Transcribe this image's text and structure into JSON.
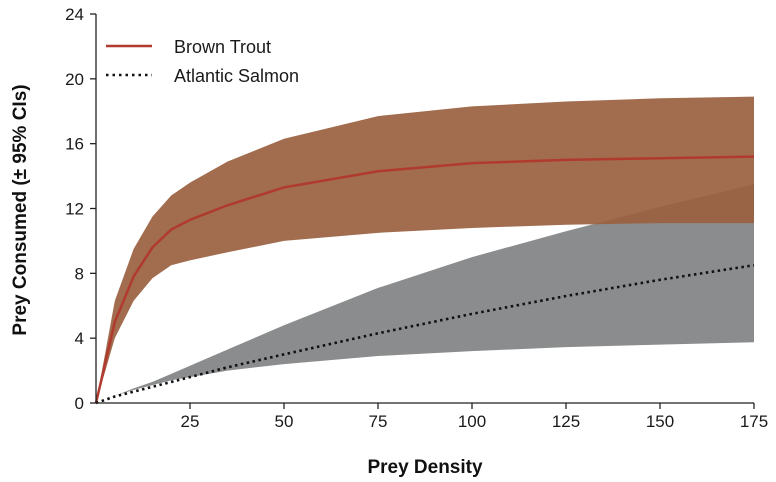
{
  "chart_data": {
    "type": "line",
    "title": "",
    "xlabel": "Prey Density",
    "ylabel": "Prey Consumed (± 95% CIs)",
    "xlim": [
      0,
      175
    ],
    "ylim": [
      0,
      24
    ],
    "x_ticks": [
      25,
      50,
      75,
      100,
      125,
      150,
      175
    ],
    "y_ticks": [
      0,
      4,
      8,
      12,
      16,
      20,
      24
    ],
    "grid": false,
    "legend_position": "top-left",
    "x": [
      0,
      5,
      10,
      15,
      20,
      25,
      35,
      50,
      75,
      100,
      125,
      150,
      175
    ],
    "series": [
      {
        "name": "Brown Trout",
        "line_style": "solid",
        "color": "#b03a2e",
        "band_color": "#9a6040",
        "values": [
          0,
          5.0,
          7.8,
          9.6,
          10.7,
          11.3,
          12.2,
          13.3,
          14.3,
          14.8,
          15.0,
          15.1,
          15.2
        ],
        "lower": [
          0,
          4.0,
          6.3,
          7.7,
          8.5,
          8.8,
          9.3,
          10.0,
          10.5,
          10.8,
          11.0,
          11.1,
          11.1
        ],
        "upper": [
          0,
          6.3,
          9.5,
          11.5,
          12.8,
          13.6,
          14.9,
          16.3,
          17.7,
          18.3,
          18.6,
          18.8,
          18.9
        ]
      },
      {
        "name": "Atlantic Salmon",
        "line_style": "dotted",
        "color": "#111111",
        "band_color": "#8a8c8d",
        "values": [
          0,
          0.4,
          0.7,
          1.0,
          1.3,
          1.6,
          2.2,
          3.0,
          4.3,
          5.5,
          6.6,
          7.6,
          8.5
        ],
        "lower": [
          0,
          0.45,
          0.8,
          1.1,
          1.4,
          1.6,
          2.0,
          2.4,
          2.9,
          3.2,
          3.45,
          3.6,
          3.75
        ],
        "upper": [
          0,
          0.45,
          0.9,
          1.3,
          1.8,
          2.3,
          3.3,
          4.8,
          7.1,
          9.0,
          10.6,
          12.1,
          13.5
        ]
      }
    ]
  }
}
